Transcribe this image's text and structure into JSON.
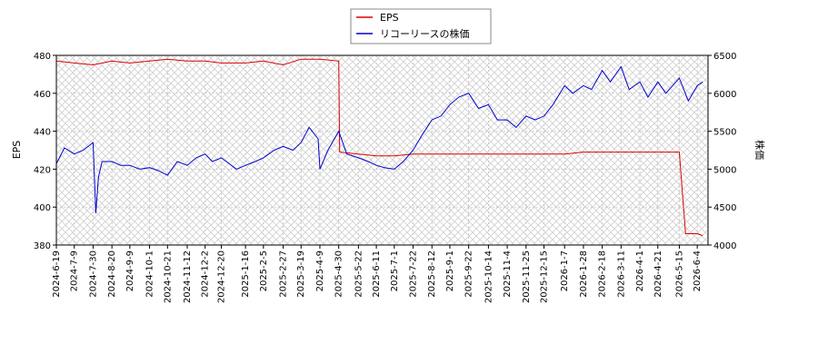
{
  "chart_data": {
    "type": "line",
    "grid": true,
    "legend_position": "top-center",
    "x_tick_labels": [
      "2024-6-19",
      "2024-7-9",
      "2024-7-30",
      "2024-8-20",
      "2024-9-9",
      "2024-10-1",
      "2024-10-21",
      "2024-11-12",
      "2024-12-2",
      "2024-12-20",
      "2025-1-16",
      "2025-2-5",
      "2025-2-27",
      "2025-3-19",
      "2025-4-9",
      "2025-4-30",
      "2025-5-22",
      "2025-6-11",
      "2025-7-1",
      "2025-7-22",
      "2025-8-12",
      "2025-9-1",
      "2025-9-22",
      "2025-10-14",
      "2025-11-4",
      "2025-11-25",
      "2025-12-15",
      "2026-1-7",
      "2026-1-28",
      "2026-2-18",
      "2026-3-11",
      "2026-4-1",
      "2026-4-21",
      "2026-5-15",
      "2026-6-4"
    ],
    "y_left": {
      "label": "EPS",
      "ylim": [
        380,
        480
      ],
      "ticks": [
        380,
        400,
        420,
        440,
        460,
        480
      ]
    },
    "y_right": {
      "label": "株価",
      "ylim": [
        4000,
        6500
      ],
      "ticks": [
        4000,
        4500,
        5000,
        5500,
        6000,
        6500
      ]
    },
    "series": [
      {
        "name": "EPS",
        "axis": "left",
        "color": "#dd0000",
        "x": [
          "2024-6-19",
          "2024-7-9",
          "2024-7-30",
          "2024-8-20",
          "2024-9-9",
          "2024-10-1",
          "2024-10-21",
          "2024-11-12",
          "2024-12-2",
          "2024-12-20",
          "2025-1-16",
          "2025-2-5",
          "2025-2-27",
          "2025-3-19",
          "2025-4-9",
          "2025-4-30",
          "2025-5-1",
          "2025-5-22",
          "2025-6-11",
          "2025-7-1",
          "2025-7-22",
          "2025-8-12",
          "2025-9-1",
          "2025-9-22",
          "2025-10-14",
          "2025-11-4",
          "2025-11-25",
          "2025-12-15",
          "2026-1-7",
          "2026-1-28",
          "2026-2-18",
          "2026-3-11",
          "2026-4-1",
          "2026-4-21",
          "2026-5-15",
          "2026-5-22",
          "2026-6-4",
          "2026-6-10"
        ],
        "values": [
          477,
          476,
          475,
          477,
          476,
          477,
          478,
          477,
          477,
          476,
          476,
          477,
          475,
          478,
          478,
          477,
          429,
          428,
          427,
          427,
          428,
          428,
          428,
          428,
          428,
          428,
          428,
          428,
          428,
          429,
          429,
          429,
          429,
          429,
          429,
          386,
          386,
          385
        ]
      },
      {
        "name": "リコーリースの株価",
        "axis": "right",
        "color": "#0000cc",
        "x": [
          "2024-6-19",
          "2024-6-28",
          "2024-7-9",
          "2024-7-19",
          "2024-7-30",
          "2024-8-2",
          "2024-8-5",
          "2024-8-9",
          "2024-8-20",
          "2024-8-30",
          "2024-9-9",
          "2024-9-20",
          "2024-10-1",
          "2024-10-11",
          "2024-10-21",
          "2024-11-1",
          "2024-11-12",
          "2024-11-22",
          "2024-12-2",
          "2024-12-10",
          "2024-12-20",
          "2025-1-6",
          "2025-1-16",
          "2025-1-27",
          "2025-2-5",
          "2025-2-17",
          "2025-2-27",
          "2025-3-10",
          "2025-3-19",
          "2025-3-28",
          "2025-4-7",
          "2025-4-9",
          "2025-4-18",
          "2025-4-30",
          "2025-5-9",
          "2025-5-22",
          "2025-6-2",
          "2025-6-11",
          "2025-6-20",
          "2025-7-1",
          "2025-7-11",
          "2025-7-22",
          "2025-8-1",
          "2025-8-12",
          "2025-8-22",
          "2025-9-1",
          "2025-9-11",
          "2025-9-22",
          "2025-10-3",
          "2025-10-14",
          "2025-10-24",
          "2025-11-4",
          "2025-11-14",
          "2025-11-25",
          "2025-12-5",
          "2025-12-15",
          "2025-12-25",
          "2026-1-7",
          "2026-1-16",
          "2026-1-28",
          "2026-2-6",
          "2026-2-18",
          "2026-2-27",
          "2026-3-11",
          "2026-3-20",
          "2026-4-1",
          "2026-4-10",
          "2026-4-21",
          "2026-4-30",
          "2026-5-15",
          "2026-5-25",
          "2026-6-4",
          "2026-6-10"
        ],
        "values": [
          5070,
          5280,
          5200,
          5250,
          5350,
          4420,
          4900,
          5100,
          5100,
          5050,
          5050,
          5000,
          5020,
          4980,
          4920,
          5100,
          5050,
          5150,
          5200,
          5100,
          5150,
          5000,
          5050,
          5100,
          5150,
          5250,
          5300,
          5250,
          5350,
          5550,
          5400,
          5000,
          5250,
          5500,
          5200,
          5150,
          5100,
          5050,
          5020,
          5000,
          5100,
          5250,
          5450,
          5650,
          5700,
          5850,
          5950,
          6000,
          5800,
          5850,
          5650,
          5650,
          5550,
          5700,
          5650,
          5700,
          5850,
          6100,
          6000,
          6100,
          6050,
          6300,
          6150,
          6350,
          6050,
          6150,
          5950,
          6150,
          6000,
          6200,
          5900,
          6100,
          6150
        ]
      }
    ]
  }
}
